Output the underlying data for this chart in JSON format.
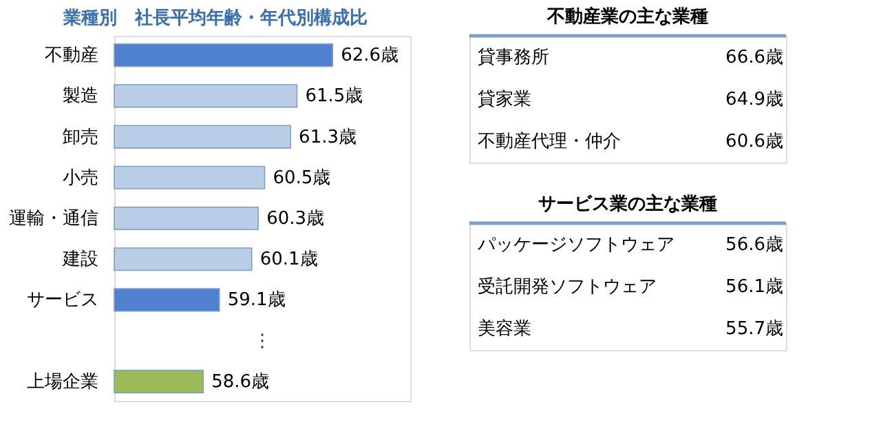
{
  "chart_data": [
    {
      "type": "bar",
      "orientation": "horizontal",
      "title": "業種別　社長平均年齢・年代別構成比",
      "categories": [
        "不動産",
        "製造",
        "卸売",
        "小売",
        "運輸・通信",
        "建設",
        "サービス",
        null,
        "上場企業"
      ],
      "values": [
        62.6,
        61.5,
        61.3,
        60.5,
        60.3,
        60.1,
        59.1,
        null,
        58.6
      ],
      "colors": [
        "#4f81d0",
        "#b9cde6",
        "#b9cde6",
        "#b9cde6",
        "#b9cde6",
        "#b9cde6",
        "#4f81d0",
        null,
        "#9bbb59"
      ],
      "value_labels": [
        "62.6歳",
        "61.5歳",
        "61.3歳",
        "60.5歳",
        "60.3歳",
        "60.1歳",
        "59.1歳",
        null,
        "58.6歳"
      ],
      "xlim": [
        55.85,
        65
      ],
      "tick_labels": "y",
      "grid": false,
      "annotations": [
        "⋮"
      ]
    },
    {
      "type": "other",
      "title": "不動産業の主な業種",
      "categories": [
        "貸事務所",
        "貸家業",
        "不動産代理・仲介"
      ],
      "values": [
        66.6,
        64.9,
        60.6
      ],
      "value_labels": [
        "66.6歳",
        "64.9歳",
        "60.6歳"
      ]
    },
    {
      "type": "other",
      "title": "サービス業の主な業種",
      "categories": [
        "パッケージソフトウェア",
        "受託開発ソフトウェア",
        "美容業"
      ],
      "values": [
        56.6,
        56.1,
        55.7
      ],
      "value_labels": [
        "56.6歳",
        "56.1歳",
        "55.7歳"
      ]
    }
  ]
}
